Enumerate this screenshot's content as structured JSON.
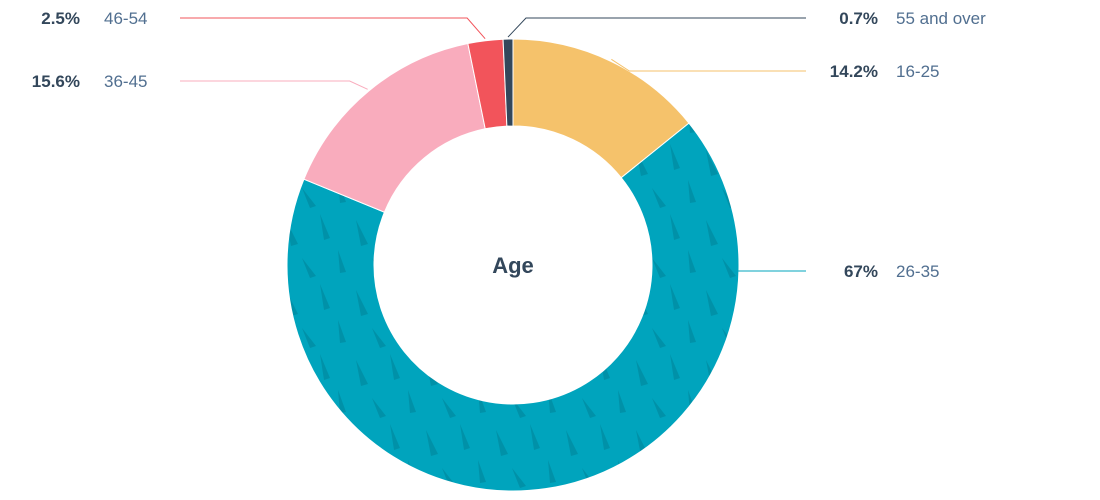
{
  "chart_data": {
    "type": "pie",
    "variant": "donut",
    "title": "Age",
    "categories": [
      "16-25",
      "26-35",
      "36-45",
      "46-54",
      "55 and over"
    ],
    "values": [
      14.2,
      67,
      15.6,
      2.5,
      0.7
    ],
    "value_labels": [
      "14.2%",
      "67%",
      "15.6%",
      "2.5%",
      "0.7%"
    ],
    "colors": [
      "#f5c26b",
      "#00a4bd",
      "#f9acbd",
      "#f2545b",
      "#33475b"
    ],
    "start": "top",
    "direction": "clockwise",
    "legend": "callout-labels"
  }
}
